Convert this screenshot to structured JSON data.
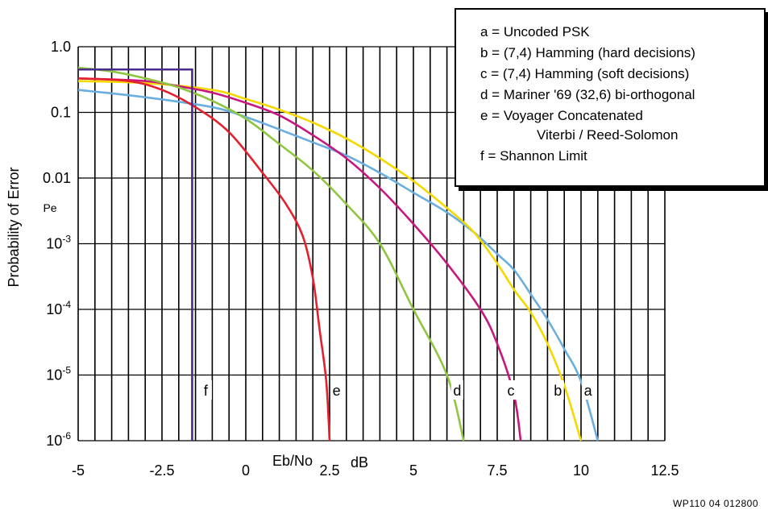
{
  "chart_data": {
    "type": "line",
    "ylabel": "Probability of Error",
    "ylabel_short": "Pe",
    "xlabel": "Eb/No",
    "xunit": "dB",
    "x_ticks": [
      "-5",
      "-2.5",
      "0",
      "2.5",
      "5",
      "7.5",
      "10",
      "12.5"
    ],
    "y_ticks": [
      {
        "base": "1.0",
        "exp": ""
      },
      {
        "base": "0.1",
        "exp": ""
      },
      {
        "base": "0.01",
        "exp": ""
      },
      {
        "base": "10",
        "exp": "-3"
      },
      {
        "base": "10",
        "exp": "-4"
      },
      {
        "base": "10",
        "exp": "-5"
      },
      {
        "base": "10",
        "exp": "-6"
      }
    ],
    "xlim": [
      -5,
      12.5
    ],
    "ylim": [
      1e-06,
      1
    ],
    "yscale": "log",
    "grid": true,
    "legend": [
      "a = Uncoded PSK",
      "b = (7,4) Hamming (hard decisions)",
      "c = (7,4) Hamming (soft decisions)",
      "d = Mariner '69 (32,6) bi-orthogonal",
      "e = Voyager Concatenated",
      "Viterbi / Reed-Solomon",
      "f = Shannon Limit"
    ],
    "series": [
      {
        "name": "a",
        "color": "#6aaee0",
        "points": [
          [
            -5,
            0.22
          ],
          [
            -3,
            0.17
          ],
          [
            -1,
            0.12
          ],
          [
            0,
            0.085
          ],
          [
            1,
            0.055
          ],
          [
            2,
            0.035
          ],
          [
            3,
            0.022
          ],
          [
            4,
            0.012
          ],
          [
            5,
            0.006
          ],
          [
            6,
            0.003
          ],
          [
            6.8,
            0.0015
          ],
          [
            7.5,
            0.0007
          ],
          [
            8,
            0.0004
          ],
          [
            8.5,
            0.00017
          ],
          [
            9,
            7e-05
          ],
          [
            9.5,
            2.5e-05
          ],
          [
            10,
            8e-06
          ],
          [
            10.5,
            1e-06
          ]
        ]
      },
      {
        "name": "b",
        "color": "#f5d800",
        "points": [
          [
            -5,
            0.3
          ],
          [
            -3,
            0.28
          ],
          [
            -1,
            0.22
          ],
          [
            0,
            0.16
          ],
          [
            1,
            0.11
          ],
          [
            2,
            0.07
          ],
          [
            3,
            0.04
          ],
          [
            4,
            0.02
          ],
          [
            5,
            0.009
          ],
          [
            6,
            0.0035
          ],
          [
            6.8,
            0.0015
          ],
          [
            7.5,
            0.0005
          ],
          [
            8,
            0.0002
          ],
          [
            8.5,
            9e-05
          ],
          [
            9,
            3e-05
          ],
          [
            9.5,
            7e-06
          ],
          [
            10,
            1e-06
          ]
        ]
      },
      {
        "name": "c",
        "color": "#c8187f",
        "points": [
          [
            -5,
            0.33
          ],
          [
            -3,
            0.3
          ],
          [
            -2,
            0.25
          ],
          [
            -1,
            0.2
          ],
          [
            0,
            0.14
          ],
          [
            1,
            0.09
          ],
          [
            2,
            0.045
          ],
          [
            3,
            0.02
          ],
          [
            4,
            0.007
          ],
          [
            5,
            0.002
          ],
          [
            6,
            0.0005
          ],
          [
            7,
            0.0001
          ],
          [
            7.5,
            3e-05
          ],
          [
            8,
            5e-06
          ],
          [
            8.2,
            1e-06
          ]
        ]
      },
      {
        "name": "d",
        "color": "#8ec63f",
        "points": [
          [
            -5,
            0.48
          ],
          [
            -4,
            0.42
          ],
          [
            -3,
            0.33
          ],
          [
            -2,
            0.24
          ],
          [
            -1,
            0.15
          ],
          [
            0,
            0.08
          ],
          [
            1,
            0.033
          ],
          [
            2,
            0.013
          ],
          [
            3,
            0.004
          ],
          [
            4,
            0.001
          ],
          [
            5,
            0.0001
          ],
          [
            6,
            1e-05
          ],
          [
            6.5,
            1e-06
          ]
        ]
      },
      {
        "name": "e",
        "color": "#e4202e",
        "points": [
          [
            -5,
            0.33
          ],
          [
            -3.5,
            0.3
          ],
          [
            -2.5,
            0.22
          ],
          [
            -1.5,
            0.12
          ],
          [
            -0.5,
            0.05
          ],
          [
            0.5,
            0.012
          ],
          [
            1.2,
            0.004
          ],
          [
            1.7,
            0.0013
          ],
          [
            2,
            0.0003
          ],
          [
            2.2,
            5e-05
          ],
          [
            2.4,
            8e-06
          ],
          [
            2.5,
            1e-06
          ]
        ]
      }
    ],
    "shannon_limit": {
      "name": "f",
      "color": "#4a2b8c",
      "points": [
        [
          -5,
          0.45
        ],
        [
          -1.6,
          0.45
        ],
        [
          -1.6,
          1e-06
        ]
      ]
    },
    "curve_labels": [
      "f",
      "e",
      "d",
      "c",
      "b",
      "a"
    ]
  },
  "footer_code": "WP110  04  012800"
}
